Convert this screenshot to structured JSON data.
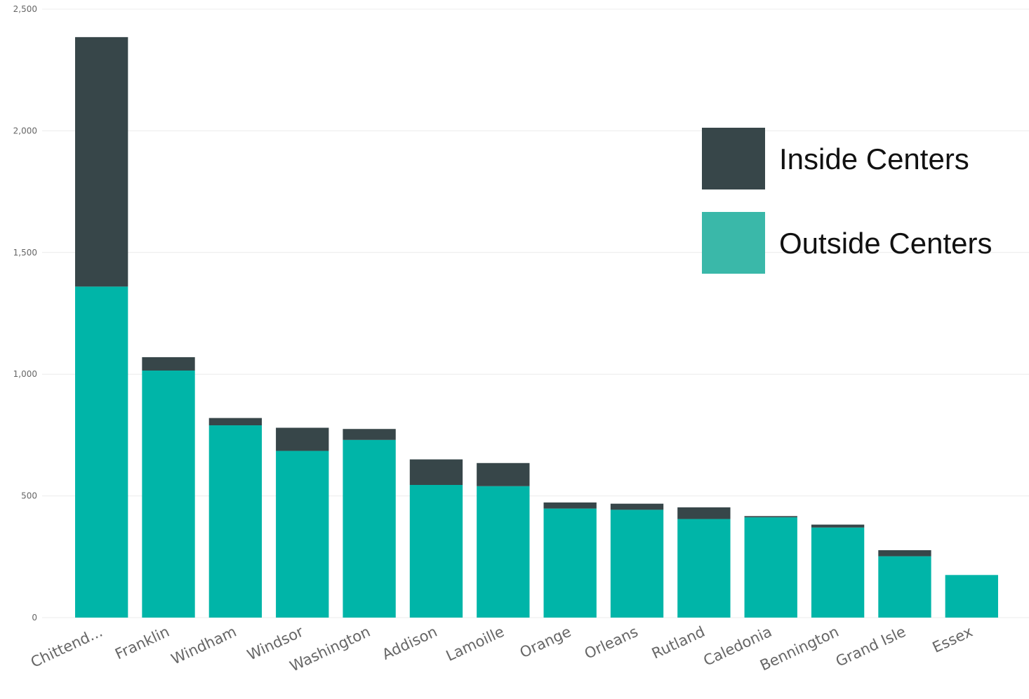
{
  "chart_data": {
    "type": "bar",
    "stacked": true,
    "categories": [
      "Chittend...",
      "Franklin",
      "Windham",
      "Windsor",
      "Washington",
      "Addison",
      "Lamoille",
      "Orange",
      "Orleans",
      "Rutland",
      "Caledonia",
      "Bennington",
      "Grand Isle",
      "Essex"
    ],
    "series": [
      {
        "name": "Outside Centers",
        "color": "#00B5A8",
        "values": [
          1360,
          1015,
          790,
          685,
          730,
          545,
          540,
          448,
          443,
          405,
          412,
          370,
          252,
          175
        ]
      },
      {
        "name": "Inside Centers",
        "color": "#374649",
        "values": [
          1025,
          55,
          30,
          95,
          45,
          105,
          95,
          25,
          25,
          48,
          5,
          12,
          25,
          0
        ]
      }
    ],
    "legend_swatch_colors": {
      "Outside Centers": "#3AB8A9",
      "Inside Centers": "#374649"
    },
    "yticks": [
      0,
      500,
      1000,
      1500,
      2000,
      2500
    ],
    "ytick_labels": [
      "0",
      "500",
      "1,000",
      "1,500",
      "2,000",
      "2,500"
    ],
    "ylim": [
      0,
      2500
    ],
    "title": "",
    "xlabel": "",
    "ylabel": "",
    "grid": true,
    "legend_position": "top-right",
    "legend_order": [
      "Inside Centers",
      "Outside Centers"
    ]
  }
}
